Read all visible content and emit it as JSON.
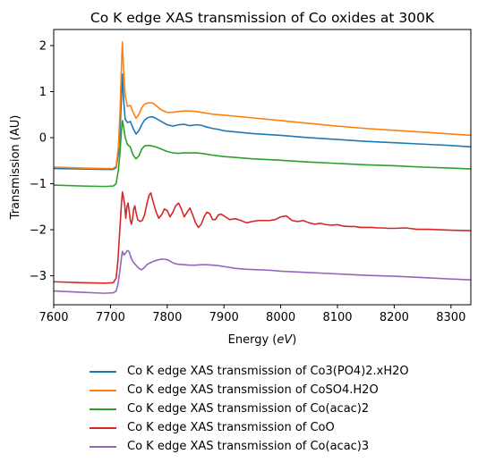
{
  "chart_data": {
    "type": "line",
    "title": "Co K edge XAS transmission of Co oxides at 300K",
    "xlabel_prefix": "Energy (",
    "xlabel_unit": "eV",
    "xlabel_suffix": ")",
    "ylabel": "Transmission (AU)",
    "xlim": [
      7600,
      8335
    ],
    "ylim": [
      -3.63,
      2.35
    ],
    "xticks": [
      7600,
      7700,
      7800,
      7900,
      8000,
      8100,
      8200,
      8300
    ],
    "yticks": [
      -3,
      -2,
      -1,
      0,
      1,
      2
    ],
    "ytick_labels": [
      "−3",
      "−2",
      "−1",
      "0",
      "1",
      "2"
    ],
    "grid": false,
    "legend_position": "below",
    "series": [
      {
        "name": "Co K edge XAS transmission of Co3(PO4)2.xH2O",
        "color": "#1f77b4",
        "points": [
          [
            7600,
            -0.67
          ],
          [
            7650,
            -0.68
          ],
          [
            7690,
            -0.69
          ],
          [
            7705,
            -0.69
          ],
          [
            7710,
            -0.65
          ],
          [
            7714,
            -0.35
          ],
          [
            7717,
            0.2
          ],
          [
            7719,
            0.75
          ],
          [
            7721,
            1.38
          ],
          [
            7723,
            0.85
          ],
          [
            7726,
            0.4
          ],
          [
            7730,
            0.33
          ],
          [
            7735,
            0.35
          ],
          [
            7740,
            0.2
          ],
          [
            7745,
            0.08
          ],
          [
            7750,
            0.15
          ],
          [
            7755,
            0.28
          ],
          [
            7760,
            0.38
          ],
          [
            7765,
            0.43
          ],
          [
            7770,
            0.45
          ],
          [
            7775,
            0.45
          ],
          [
            7780,
            0.42
          ],
          [
            7790,
            0.35
          ],
          [
            7800,
            0.28
          ],
          [
            7810,
            0.25
          ],
          [
            7820,
            0.28
          ],
          [
            7830,
            0.29
          ],
          [
            7840,
            0.26
          ],
          [
            7850,
            0.28
          ],
          [
            7860,
            0.27
          ],
          [
            7870,
            0.23
          ],
          [
            7880,
            0.2
          ],
          [
            7890,
            0.18
          ],
          [
            7900,
            0.15
          ],
          [
            7950,
            0.09
          ],
          [
            8000,
            0.05
          ],
          [
            8050,
            0.0
          ],
          [
            8100,
            -0.04
          ],
          [
            8150,
            -0.08
          ],
          [
            8200,
            -0.11
          ],
          [
            8250,
            -0.14
          ],
          [
            8300,
            -0.17
          ],
          [
            8335,
            -0.2
          ]
        ]
      },
      {
        "name": "Co K edge XAS transmission of CoSO4.H2O",
        "color": "#ff7f0e",
        "points": [
          [
            7600,
            -0.64
          ],
          [
            7650,
            -0.66
          ],
          [
            7690,
            -0.67
          ],
          [
            7705,
            -0.67
          ],
          [
            7710,
            -0.62
          ],
          [
            7714,
            -0.2
          ],
          [
            7717,
            0.6
          ],
          [
            7719,
            1.4
          ],
          [
            7721,
            2.08
          ],
          [
            7723,
            1.5
          ],
          [
            7726,
            0.9
          ],
          [
            7730,
            0.68
          ],
          [
            7735,
            0.7
          ],
          [
            7740,
            0.55
          ],
          [
            7745,
            0.42
          ],
          [
            7750,
            0.5
          ],
          [
            7755,
            0.65
          ],
          [
            7760,
            0.73
          ],
          [
            7765,
            0.75
          ],
          [
            7770,
            0.76
          ],
          [
            7775,
            0.75
          ],
          [
            7780,
            0.7
          ],
          [
            7790,
            0.6
          ],
          [
            7800,
            0.55
          ],
          [
            7810,
            0.55
          ],
          [
            7820,
            0.57
          ],
          [
            7830,
            0.58
          ],
          [
            7840,
            0.58
          ],
          [
            7850,
            0.57
          ],
          [
            7860,
            0.55
          ],
          [
            7870,
            0.53
          ],
          [
            7880,
            0.51
          ],
          [
            7900,
            0.49
          ],
          [
            7950,
            0.43
          ],
          [
            8000,
            0.37
          ],
          [
            8050,
            0.31
          ],
          [
            8100,
            0.25
          ],
          [
            8150,
            0.2
          ],
          [
            8200,
            0.16
          ],
          [
            8250,
            0.12
          ],
          [
            8300,
            0.08
          ],
          [
            8335,
            0.05
          ]
        ]
      },
      {
        "name": "Co K edge XAS transmission of Co(acac)2",
        "color": "#2ca02c",
        "points": [
          [
            7600,
            -1.03
          ],
          [
            7650,
            -1.05
          ],
          [
            7690,
            -1.06
          ],
          [
            7705,
            -1.05
          ],
          [
            7710,
            -1.0
          ],
          [
            7714,
            -0.7
          ],
          [
            7717,
            -0.3
          ],
          [
            7719,
            0.1
          ],
          [
            7721,
            0.37
          ],
          [
            7723,
            0.25
          ],
          [
            7726,
            0.0
          ],
          [
            7730,
            -0.15
          ],
          [
            7735,
            -0.2
          ],
          [
            7740,
            -0.38
          ],
          [
            7745,
            -0.46
          ],
          [
            7750,
            -0.4
          ],
          [
            7755,
            -0.25
          ],
          [
            7760,
            -0.18
          ],
          [
            7765,
            -0.17
          ],
          [
            7770,
            -0.17
          ],
          [
            7780,
            -0.2
          ],
          [
            7790,
            -0.25
          ],
          [
            7800,
            -0.3
          ],
          [
            7810,
            -0.33
          ],
          [
            7820,
            -0.34
          ],
          [
            7830,
            -0.33
          ],
          [
            7840,
            -0.33
          ],
          [
            7850,
            -0.33
          ],
          [
            7860,
            -0.34
          ],
          [
            7870,
            -0.36
          ],
          [
            7880,
            -0.38
          ],
          [
            7900,
            -0.41
          ],
          [
            7950,
            -0.46
          ],
          [
            8000,
            -0.49
          ],
          [
            8050,
            -0.53
          ],
          [
            8100,
            -0.56
          ],
          [
            8150,
            -0.59
          ],
          [
            8200,
            -0.61
          ],
          [
            8250,
            -0.64
          ],
          [
            8300,
            -0.66
          ],
          [
            8335,
            -0.68
          ]
        ]
      },
      {
        "name": "Co K edge XAS transmission of CoO",
        "color": "#d62728",
        "points": [
          [
            7600,
            -3.13
          ],
          [
            7650,
            -3.15
          ],
          [
            7690,
            -3.16
          ],
          [
            7705,
            -3.15
          ],
          [
            7710,
            -3.05
          ],
          [
            7713,
            -2.7
          ],
          [
            7716,
            -2.1
          ],
          [
            7719,
            -1.5
          ],
          [
            7721,
            -1.18
          ],
          [
            7723,
            -1.3
          ],
          [
            7725,
            -1.45
          ],
          [
            7727,
            -1.75
          ],
          [
            7729,
            -1.5
          ],
          [
            7731,
            -1.42
          ],
          [
            7733,
            -1.6
          ],
          [
            7735,
            -1.8
          ],
          [
            7737,
            -1.88
          ],
          [
            7739,
            -1.75
          ],
          [
            7741,
            -1.55
          ],
          [
            7743,
            -1.48
          ],
          [
            7745,
            -1.62
          ],
          [
            7748,
            -1.78
          ],
          [
            7752,
            -1.82
          ],
          [
            7756,
            -1.8
          ],
          [
            7760,
            -1.68
          ],
          [
            7764,
            -1.45
          ],
          [
            7768,
            -1.25
          ],
          [
            7771,
            -1.2
          ],
          [
            7775,
            -1.38
          ],
          [
            7780,
            -1.6
          ],
          [
            7785,
            -1.75
          ],
          [
            7790,
            -1.68
          ],
          [
            7795,
            -1.55
          ],
          [
            7800,
            -1.58
          ],
          [
            7805,
            -1.72
          ],
          [
            7810,
            -1.62
          ],
          [
            7815,
            -1.48
          ],
          [
            7820,
            -1.42
          ],
          [
            7825,
            -1.55
          ],
          [
            7830,
            -1.72
          ],
          [
            7835,
            -1.62
          ],
          [
            7840,
            -1.53
          ],
          [
            7845,
            -1.68
          ],
          [
            7850,
            -1.85
          ],
          [
            7855,
            -1.95
          ],
          [
            7860,
            -1.88
          ],
          [
            7865,
            -1.72
          ],
          [
            7870,
            -1.62
          ],
          [
            7875,
            -1.65
          ],
          [
            7880,
            -1.78
          ],
          [
            7885,
            -1.78
          ],
          [
            7890,
            -1.68
          ],
          [
            7895,
            -1.66
          ],
          [
            7900,
            -1.7
          ],
          [
            7910,
            -1.78
          ],
          [
            7920,
            -1.76
          ],
          [
            7930,
            -1.8
          ],
          [
            7940,
            -1.85
          ],
          [
            7950,
            -1.82
          ],
          [
            7960,
            -1.8
          ],
          [
            7970,
            -1.8
          ],
          [
            7980,
            -1.8
          ],
          [
            7990,
            -1.78
          ],
          [
            8000,
            -1.72
          ],
          [
            8010,
            -1.7
          ],
          [
            8020,
            -1.8
          ],
          [
            8030,
            -1.82
          ],
          [
            8040,
            -1.8
          ],
          [
            8050,
            -1.85
          ],
          [
            8060,
            -1.88
          ],
          [
            8070,
            -1.86
          ],
          [
            8080,
            -1.89
          ],
          [
            8090,
            -1.9
          ],
          [
            8100,
            -1.89
          ],
          [
            8110,
            -1.92
          ],
          [
            8120,
            -1.93
          ],
          [
            8130,
            -1.93
          ],
          [
            8140,
            -1.95
          ],
          [
            8150,
            -1.95
          ],
          [
            8160,
            -1.95
          ],
          [
            8170,
            -1.96
          ],
          [
            8180,
            -1.96
          ],
          [
            8190,
            -1.97
          ],
          [
            8200,
            -1.97
          ],
          [
            8220,
            -1.96
          ],
          [
            8240,
            -1.99
          ],
          [
            8260,
            -1.99
          ],
          [
            8280,
            -2.0
          ],
          [
            8300,
            -2.01
          ],
          [
            8335,
            -2.02
          ]
        ]
      },
      {
        "name": "Co K edge XAS transmission of Co(acac)3",
        "color": "#9467bd",
        "points": [
          [
            7600,
            -3.33
          ],
          [
            7650,
            -3.36
          ],
          [
            7690,
            -3.38
          ],
          [
            7705,
            -3.37
          ],
          [
            7710,
            -3.33
          ],
          [
            7713,
            -3.2
          ],
          [
            7716,
            -2.95
          ],
          [
            7719,
            -2.65
          ],
          [
            7721,
            -2.47
          ],
          [
            7724,
            -2.55
          ],
          [
            7727,
            -2.5
          ],
          [
            7730,
            -2.45
          ],
          [
            7733,
            -2.48
          ],
          [
            7736,
            -2.6
          ],
          [
            7740,
            -2.7
          ],
          [
            7745,
            -2.77
          ],
          [
            7750,
            -2.84
          ],
          [
            7755,
            -2.87
          ],
          [
            7760,
            -2.82
          ],
          [
            7765,
            -2.75
          ],
          [
            7770,
            -2.72
          ],
          [
            7775,
            -2.69
          ],
          [
            7780,
            -2.67
          ],
          [
            7785,
            -2.65
          ],
          [
            7790,
            -2.64
          ],
          [
            7795,
            -2.64
          ],
          [
            7800,
            -2.65
          ],
          [
            7805,
            -2.68
          ],
          [
            7810,
            -2.72
          ],
          [
            7815,
            -2.74
          ],
          [
            7820,
            -2.75
          ],
          [
            7830,
            -2.76
          ],
          [
            7840,
            -2.77
          ],
          [
            7850,
            -2.77
          ],
          [
            7860,
            -2.76
          ],
          [
            7870,
            -2.76
          ],
          [
            7880,
            -2.77
          ],
          [
            7890,
            -2.78
          ],
          [
            7900,
            -2.8
          ],
          [
            7920,
            -2.84
          ],
          [
            7940,
            -2.86
          ],
          [
            7960,
            -2.87
          ],
          [
            7980,
            -2.88
          ],
          [
            8000,
            -2.9
          ],
          [
            8050,
            -2.93
          ],
          [
            8100,
            -2.96
          ],
          [
            8150,
            -2.99
          ],
          [
            8200,
            -3.01
          ],
          [
            8250,
            -3.04
          ],
          [
            8300,
            -3.07
          ],
          [
            8335,
            -3.09
          ]
        ]
      }
    ]
  }
}
